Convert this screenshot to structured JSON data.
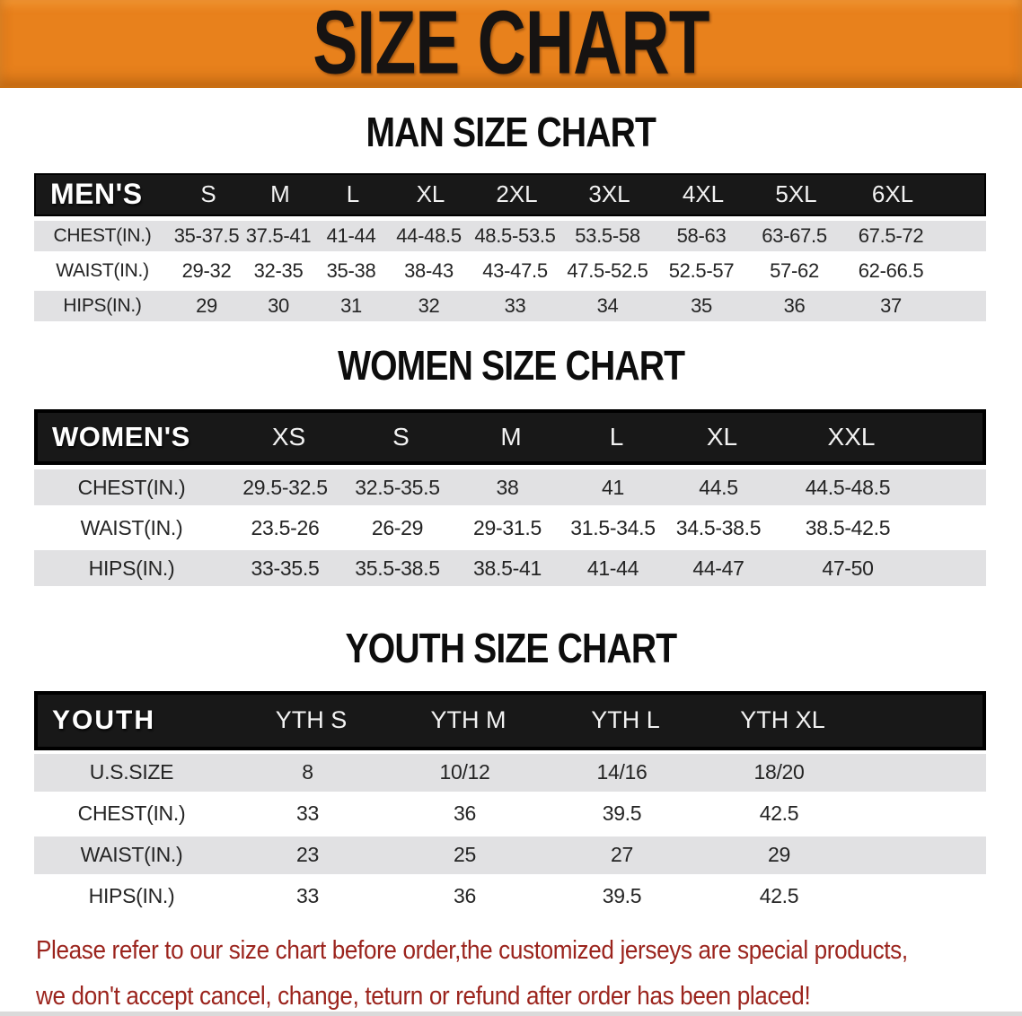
{
  "colors": {
    "banner_orange": "#e8811c",
    "table_header_black": "#181818",
    "shaded_row_gray": "#e1e1e3",
    "disclaimer_red": "#9b241d"
  },
  "banner": {
    "title": "SIZE CHART"
  },
  "sections": [
    {
      "heading": "MAN SIZE CHART",
      "corner_label": "MEN'S",
      "columns": [
        "S",
        "M",
        "L",
        "XL",
        "2XL",
        "3XL",
        "4XL",
        "5XL",
        "6XL"
      ],
      "rows": [
        {
          "label": "CHEST(IN.)",
          "values": [
            "35-37.5",
            "37.5-41",
            "41-44",
            "44-48.5",
            "48.5-53.5",
            "53.5-58",
            "58-63",
            "63-67.5",
            "67.5-72"
          ]
        },
        {
          "label": "WAIST(IN.)",
          "values": [
            "29-32",
            "32-35",
            "35-38",
            "38-43",
            "43-47.5",
            "47.5-52.5",
            "52.5-57",
            "57-62",
            "62-66.5"
          ]
        },
        {
          "label": "HIPS(IN.)",
          "values": [
            "29",
            "30",
            "31",
            "32",
            "33",
            "34",
            "35",
            "36",
            "37"
          ]
        }
      ]
    },
    {
      "heading": "WOMEN SIZE CHART",
      "corner_label": "WOMEN'S",
      "columns": [
        "XS",
        "S",
        "M",
        "L",
        "XL",
        "XXL"
      ],
      "rows": [
        {
          "label": "CHEST(IN.)",
          "values": [
            "29.5-32.5",
            "32.5-35.5",
            "38",
            "41",
            "44.5",
            "44.5-48.5"
          ]
        },
        {
          "label": "WAIST(IN.)",
          "values": [
            "23.5-26",
            "26-29",
            "29-31.5",
            "31.5-34.5",
            "34.5-38.5",
            "38.5-42.5"
          ]
        },
        {
          "label": "HIPS(IN.)",
          "values": [
            "33-35.5",
            "35.5-38.5",
            "38.5-41",
            "41-44",
            "44-47",
            "47-50"
          ]
        }
      ]
    },
    {
      "heading": "YOUTH SIZE CHART",
      "corner_label": "YOUTH",
      "columns": [
        "YTH S",
        "YTH M",
        "YTH L",
        "YTH XL"
      ],
      "rows": [
        {
          "label": "U.S.SIZE",
          "values": [
            "8",
            "10/12",
            "14/16",
            "18/20"
          ]
        },
        {
          "label": "CHEST(IN.)",
          "values": [
            "33",
            "36",
            "39.5",
            "42.5"
          ]
        },
        {
          "label": "WAIST(IN.)",
          "values": [
            "23",
            "25",
            "27",
            "29"
          ]
        },
        {
          "label": "HIPS(IN.)",
          "values": [
            "33",
            "36",
            "39.5",
            "42.5"
          ]
        }
      ]
    }
  ],
  "disclaimer": {
    "line1": "Please refer to our size chart before order,the customized jerseys are special products,",
    "line2": "we don't accept cancel, change, teturn or refund after order has been placed!"
  }
}
